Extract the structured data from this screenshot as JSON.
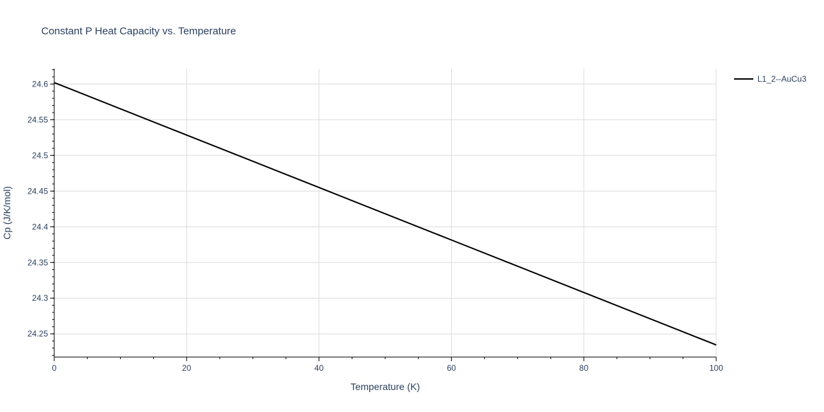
{
  "chart_data": {
    "type": "line",
    "title": "Constant P Heat Capacity vs. Temperature",
    "xlabel": "Temperature (K)",
    "ylabel": "Cp (J/K/mol)",
    "xlim": [
      0,
      100
    ],
    "ylim": [
      24.2175,
      24.6215
    ],
    "x_ticks": [
      0,
      20,
      40,
      60,
      80,
      100
    ],
    "x_tick_labels": [
      "0",
      "20",
      "40",
      "60",
      "80",
      "100"
    ],
    "y_ticks": [
      24.25,
      24.3,
      24.35,
      24.4,
      24.45,
      24.5,
      24.55,
      24.6
    ],
    "y_tick_labels": [
      "24.25",
      "24.3",
      "24.35",
      "24.4",
      "24.45",
      "24.5",
      "24.55",
      "24.6"
    ],
    "grid": true,
    "legend_position": "top-right",
    "series": [
      {
        "name": "L1_2--AuCu3",
        "color": "#000000",
        "x": [
          0,
          20,
          40,
          60,
          80,
          100
        ],
        "y": [
          24.602,
          24.5285,
          24.455,
          24.3815,
          24.308,
          24.2345
        ]
      }
    ]
  }
}
